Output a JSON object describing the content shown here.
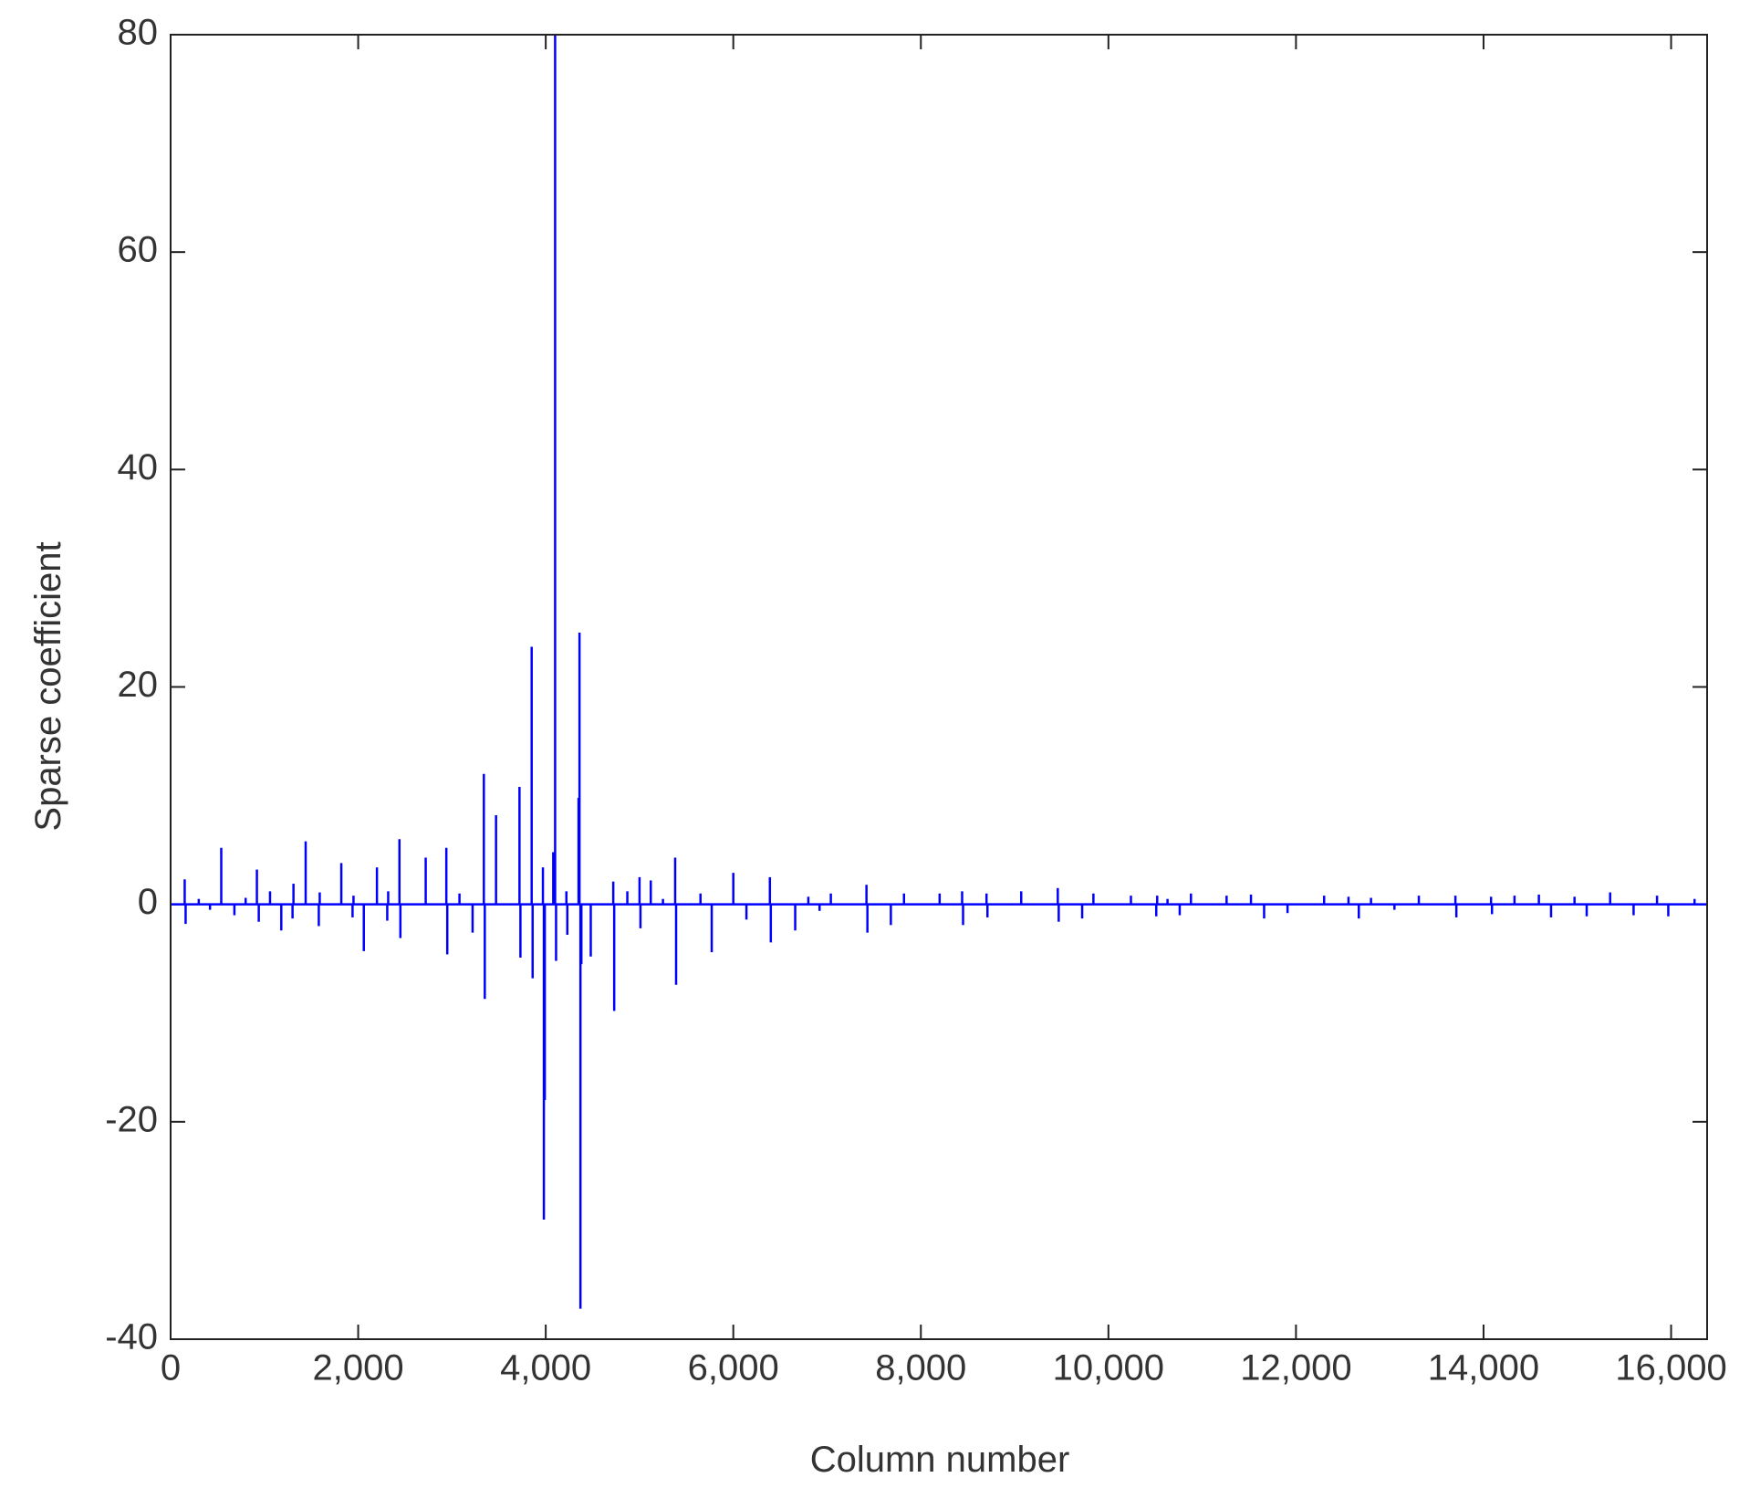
{
  "chart_data": {
    "type": "stem",
    "xlabel": "Column number",
    "ylabel": "Sparse coefficient",
    "color": "#0000ff",
    "xlim": [
      0,
      16384
    ],
    "ylim": [
      -40,
      80
    ],
    "xticks": [
      0,
      {
        "value": 2000,
        "label": "2,000"
      },
      {
        "value": 4000,
        "label": "4,000"
      },
      {
        "value": 6000,
        "label": "6,000"
      },
      {
        "value": 8000,
        "label": "8,000"
      },
      {
        "value": 10000,
        "label": "10,000"
      },
      {
        "value": 12000,
        "label": "12,000"
      },
      {
        "value": 14000,
        "label": "14,000"
      },
      {
        "value": 16000,
        "label": "16,000"
      }
    ],
    "yticks": [
      -40,
      -20,
      0,
      20,
      40,
      60,
      80
    ],
    "x": [
      150,
      160,
      300,
      420,
      540,
      680,
      800,
      920,
      940,
      1060,
      1180,
      1300,
      1310,
      1440,
      1580,
      1590,
      1820,
      1940,
      1950,
      2060,
      2200,
      2310,
      2320,
      2440,
      2450,
      2720,
      2940,
      2950,
      3080,
      3220,
      3340,
      3350,
      3470,
      3720,
      3730,
      3850,
      3860,
      3970,
      3980,
      3990,
      4080,
      4100,
      4110,
      4220,
      4230,
      4350,
      4360,
      4370,
      4380,
      4480,
      4720,
      4730,
      4870,
      5000,
      5010,
      5120,
      5250,
      5380,
      5390,
      5650,
      5770,
      6000,
      6140,
      6390,
      6400,
      6660,
      6800,
      6920,
      7040,
      7420,
      7430,
      7680,
      7820,
      8200,
      8440,
      8450,
      8700,
      8710,
      9070,
      9460,
      9470,
      9720,
      9840,
      10240,
      10510,
      10520,
      10630,
      10760,
      10880,
      11260,
      11520,
      11660,
      11910,
      12300,
      12560,
      12670,
      12800,
      13050,
      13310,
      13700,
      13710,
      14080,
      14090,
      14330,
      14590,
      14720,
      14970,
      15100,
      15350,
      15600,
      15850,
      15970,
      16250
    ],
    "values": [
      2.3,
      -1.8,
      0.5,
      -0.5,
      5.2,
      -1,
      0.6,
      3.2,
      -1.6,
      1.2,
      -2.4,
      -1.3,
      1.9,
      5.8,
      -2,
      1.1,
      3.8,
      -1.2,
      0.8,
      -4.3,
      3.4,
      -1.5,
      1.2,
      6,
      -3.1,
      4.3,
      5.2,
      -4.6,
      1,
      -2.6,
      12,
      -8.7,
      8.2,
      10.8,
      -4.9,
      23.7,
      -6.8,
      3.4,
      -29,
      -18,
      4.8,
      80,
      -5.2,
      1.2,
      -2.8,
      9.8,
      25,
      -37.2,
      -5.5,
      -4.8,
      2.1,
      -9.8,
      1.2,
      2.5,
      -2.2,
      2.2,
      0.5,
      4.3,
      -7.4,
      1,
      -4.4,
      2.9,
      -1.4,
      2.5,
      -3.5,
      -2.4,
      0.7,
      -0.6,
      1,
      1.8,
      -2.6,
      -1.9,
      1,
      1,
      1.2,
      -1.9,
      1,
      -1.2,
      1.2,
      1.5,
      -1.6,
      -1.3,
      1,
      0.8,
      -1.1,
      0.8,
      0.5,
      -1,
      1,
      0.8,
      0.9,
      -1.3,
      -0.8,
      0.8,
      0.7,
      -1.3,
      0.6,
      -0.5,
      0.8,
      0.8,
      -1.2,
      0.7,
      -0.9,
      0.8,
      0.9,
      -1.2,
      0.7,
      -1.1,
      1.1,
      -1,
      0.8,
      -1.1,
      0.5
    ]
  }
}
